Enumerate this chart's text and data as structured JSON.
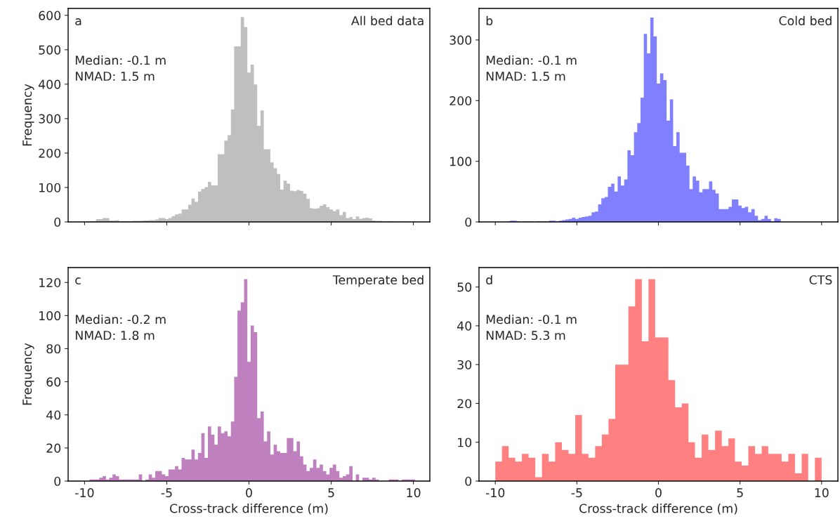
{
  "chart_data": [
    {
      "type": "histogram",
      "title": "All bed data",
      "ylabel": "Frequency",
      "annotations": [
        "a",
        "Median: -0.1 m",
        "NMAD: 1.5 m"
      ],
      "color": "#bfbfbf",
      "tick_labels": "y",
      "grid": false,
      "bins": [
        -9.9,
        -9.7,
        -9.5,
        -9.3,
        -9.1,
        -8.9,
        -8.7,
        -8.5,
        -8.3,
        -8.1,
        -7.9,
        -7.7,
        -7.5,
        -7.3,
        -7.1,
        -6.9,
        -6.7,
        -6.5,
        -6.3,
        -6.1,
        -5.9,
        -5.7,
        -5.5,
        -5.3,
        -5.1,
        -4.9,
        -4.7,
        -4.5,
        -4.3,
        -4.1,
        -3.9,
        -3.7,
        -3.5,
        -3.3,
        -3.1,
        -2.9,
        -2.7,
        -2.5,
        -2.3,
        -2.1,
        -1.9,
        -1.7,
        -1.5,
        -1.3,
        -1.1,
        -0.9,
        -0.7,
        -0.5,
        -0.3,
        -0.1,
        0.1,
        0.3,
        0.5,
        0.7,
        0.9,
        1.1,
        1.3,
        1.5,
        1.7,
        1.9,
        2.1,
        2.3,
        2.5,
        2.7,
        2.9,
        3.1,
        3.3,
        3.5,
        3.7,
        3.9,
        4.1,
        4.3,
        4.5,
        4.7,
        4.9,
        5.1,
        5.3,
        5.5,
        5.7,
        5.9,
        6.1,
        6.3,
        6.5,
        6.7,
        6.9,
        7.1,
        7.3,
        7.5,
        7.7,
        7.9,
        8.1,
        8.3,
        8.5,
        8.7,
        8.9,
        9.1,
        9.3,
        9.5,
        9.7,
        9.9,
        10.1
      ],
      "values": [
        1,
        2,
        2,
        8,
        8,
        11,
        11,
        4,
        4,
        5,
        2,
        2,
        2,
        2,
        3,
        3,
        3,
        4,
        4,
        5,
        5,
        7,
        11,
        11,
        8,
        11,
        17,
        22,
        24,
        36,
        36,
        50,
        68,
        58,
        88,
        96,
        101,
        116,
        106,
        106,
        197,
        197,
        236,
        252,
        327,
        510,
        510,
        595,
        566,
        434,
        457,
        399,
        279,
        324,
        211,
        211,
        173,
        156,
        139,
        94,
        120,
        111,
        91,
        89,
        93,
        90,
        82,
        67,
        40,
        38,
        40,
        47,
        51,
        43,
        36,
        31,
        36,
        20,
        29,
        11,
        14,
        8,
        16,
        9,
        11,
        12,
        10,
        4,
        3,
        3,
        1,
        1,
        2,
        2,
        1,
        1,
        1,
        1,
        2,
        1
      ],
      "xlim": [
        -11,
        11
      ],
      "xticks": [
        -10,
        -5,
        0,
        5,
        10
      ],
      "ylim": [
        0,
        620
      ],
      "yticks": [
        0,
        100,
        200,
        300,
        400,
        500,
        600
      ]
    },
    {
      "type": "histogram",
      "title": "Cold bed",
      "annotations": [
        "b",
        "Median: -0.1 m",
        "NMAD: 1.5 m"
      ],
      "color": "#8080ff",
      "tick_labels": "y",
      "grid": false,
      "bins": [
        -9.9,
        -9.7,
        -9.5,
        -9.3,
        -9.1,
        -8.9,
        -8.7,
        -8.5,
        -8.3,
        -8.1,
        -7.9,
        -7.7,
        -7.5,
        -7.3,
        -7.1,
        -6.9,
        -6.7,
        -6.5,
        -6.3,
        -6.1,
        -5.9,
        -5.7,
        -5.5,
        -5.3,
        -5.1,
        -4.9,
        -4.7,
        -4.5,
        -4.3,
        -4.1,
        -3.9,
        -3.7,
        -3.5,
        -3.3,
        -3.1,
        -2.9,
        -2.7,
        -2.5,
        -2.3,
        -2.1,
        -1.9,
        -1.7,
        -1.5,
        -1.3,
        -1.1,
        -0.9,
        -0.7,
        -0.5,
        -0.3,
        -0.1,
        0.1,
        0.3,
        0.5,
        0.7,
        0.9,
        1.1,
        1.3,
        1.5,
        1.7,
        1.9,
        2.1,
        2.3,
        2.5,
        2.7,
        2.9,
        3.1,
        3.3,
        3.5,
        3.7,
        3.9,
        4.1,
        4.3,
        4.5,
        4.7,
        4.9,
        5.1,
        5.3,
        5.5,
        5.7,
        5.9,
        6.1,
        6.3,
        6.5,
        6.7,
        6.9,
        7.1,
        7.3,
        7.5,
        7.7,
        7.9,
        8.1,
        8.3,
        8.5,
        8.7,
        8.9,
        9.1,
        9.3,
        9.5,
        9.7,
        9.9,
        10.1
      ],
      "values": [
        0,
        0,
        0,
        1,
        2,
        2,
        1,
        0,
        1,
        1,
        1,
        0,
        1,
        1,
        1,
        1,
        2,
        2,
        1,
        2,
        3,
        4,
        5,
        7,
        5,
        7,
        8,
        9,
        10,
        16,
        17,
        29,
        39,
        41,
        58,
        63,
        50,
        75,
        60,
        70,
        118,
        110,
        148,
        163,
        205,
        310,
        278,
        337,
        306,
        228,
        245,
        234,
        167,
        202,
        125,
        148,
        114,
        114,
        93,
        54,
        75,
        68,
        49,
        54,
        54,
        67,
        53,
        47,
        21,
        21,
        21,
        25,
        37,
        37,
        27,
        23,
        25,
        16,
        21,
        10,
        3,
        5,
        10,
        5,
        1,
        6,
        5,
        0,
        0,
        0,
        0,
        0,
        0,
        0,
        0,
        0,
        0,
        0,
        0,
        0
      ],
      "xlim": [
        -11,
        11
      ],
      "xticks": [
        -10,
        -5,
        0,
        5,
        10
      ],
      "ylim": [
        0,
        352
      ],
      "yticks": [
        0,
        100,
        200,
        300
      ]
    },
    {
      "type": "histogram",
      "title": "Temperate bed",
      "xlabel": "Cross-track difference (m)",
      "ylabel": "Frequency",
      "annotations": [
        "c",
        "Median: -0.2 m",
        "NMAD: 1.8 m"
      ],
      "color": "#bf80bf",
      "grid": false,
      "bins": [
        -9.9,
        -9.7,
        -9.5,
        -9.3,
        -9.1,
        -8.9,
        -8.7,
        -8.5,
        -8.3,
        -8.1,
        -7.9,
        -7.7,
        -7.5,
        -7.3,
        -7.1,
        -6.9,
        -6.7,
        -6.5,
        -6.3,
        -6.1,
        -5.9,
        -5.7,
        -5.5,
        -5.3,
        -5.1,
        -4.9,
        -4.7,
        -4.5,
        -4.3,
        -4.1,
        -3.9,
        -3.7,
        -3.5,
        -3.3,
        -3.1,
        -2.9,
        -2.7,
        -2.5,
        -2.3,
        -2.1,
        -1.9,
        -1.7,
        -1.5,
        -1.3,
        -1.1,
        -0.9,
        -0.7,
        -0.5,
        -0.3,
        -0.1,
        0.1,
        0.3,
        0.5,
        0.7,
        0.9,
        1.1,
        1.3,
        1.5,
        1.7,
        1.9,
        2.1,
        2.3,
        2.5,
        2.7,
        2.9,
        3.1,
        3.3,
        3.5,
        3.7,
        3.9,
        4.1,
        4.3,
        4.5,
        4.7,
        4.9,
        5.1,
        5.3,
        5.5,
        5.7,
        5.9,
        6.1,
        6.3,
        6.5,
        6.7,
        6.9,
        7.1,
        7.3,
        7.5,
        7.7,
        7.9,
        8.1,
        8.3,
        8.5,
        8.7,
        8.9,
        9.1,
        9.3,
        9.5,
        9.7,
        9.9,
        10.1
      ],
      "values": [
        0,
        1,
        1,
        1,
        2,
        3,
        1,
        2,
        4,
        3,
        1,
        1,
        1,
        1,
        1,
        1,
        4,
        0,
        1,
        4,
        2,
        6,
        6,
        4,
        3,
        7,
        7,
        9,
        7,
        14,
        13,
        13,
        19,
        13,
        17,
        29,
        14,
        33,
        28,
        22,
        33,
        29,
        30,
        27,
        36,
        63,
        103,
        108,
        122,
        72,
        94,
        90,
        38,
        42,
        24,
        30,
        16,
        22,
        18,
        17,
        17,
        26,
        26,
        18,
        24,
        15,
        10,
        6,
        8,
        13,
        8,
        10,
        6,
        4,
        8,
        10,
        6,
        2,
        3,
        4,
        9,
        0,
        4,
        0,
        2,
        2,
        1,
        2,
        1,
        0,
        0,
        0,
        1,
        1,
        1,
        0,
        1,
        1,
        1,
        1
      ],
      "xlim": [
        -11,
        11
      ],
      "xticks": [
        -10,
        -5,
        0,
        5,
        10
      ],
      "ylim": [
        0,
        129
      ],
      "yticks": [
        0,
        20,
        40,
        60,
        80,
        100,
        120
      ]
    },
    {
      "type": "histogram",
      "title": "CTS",
      "xlabel": "Cross-track difference (m)",
      "annotations": [
        "d",
        "Median: -0.1 m",
        "NMAD: 5.3 m"
      ],
      "color": "#ff8080",
      "grid": false,
      "bins": [
        -10,
        -9.59,
        -9.18,
        -8.78,
        -8.37,
        -7.96,
        -7.55,
        -7.14,
        -6.73,
        -6.33,
        -5.92,
        -5.51,
        -5.1,
        -4.69,
        -4.29,
        -3.88,
        -3.47,
        -3.06,
        -2.65,
        -2.24,
        -1.84,
        -1.43,
        -1.02,
        -0.61,
        -0.2,
        0.2,
        0.61,
        1.02,
        1.43,
        1.84,
        2.24,
        2.65,
        3.06,
        3.47,
        3.88,
        4.29,
        4.69,
        5.1,
        5.51,
        5.92,
        6.33,
        6.73,
        7.14,
        7.55,
        7.96,
        8.37,
        8.78,
        9.18,
        9.59,
        10
      ],
      "values": [
        5,
        9,
        6,
        5,
        7,
        6,
        1,
        7,
        5,
        10,
        8,
        7,
        17,
        7,
        6,
        9,
        12,
        16,
        30,
        30,
        45,
        52,
        36,
        52,
        37,
        37,
        26,
        19,
        20,
        10,
        6,
        12,
        8,
        13,
        9,
        11,
        5,
        4,
        9,
        7,
        9,
        7,
        7,
        5,
        7,
        2,
        7,
        0,
        6
      ],
      "xlim": [
        -11,
        11
      ],
      "xticks": [
        -10,
        -5,
        0,
        5,
        10
      ],
      "ylim": [
        0,
        55
      ],
      "yticks": [
        0,
        10,
        20,
        30,
        40,
        50
      ]
    }
  ]
}
